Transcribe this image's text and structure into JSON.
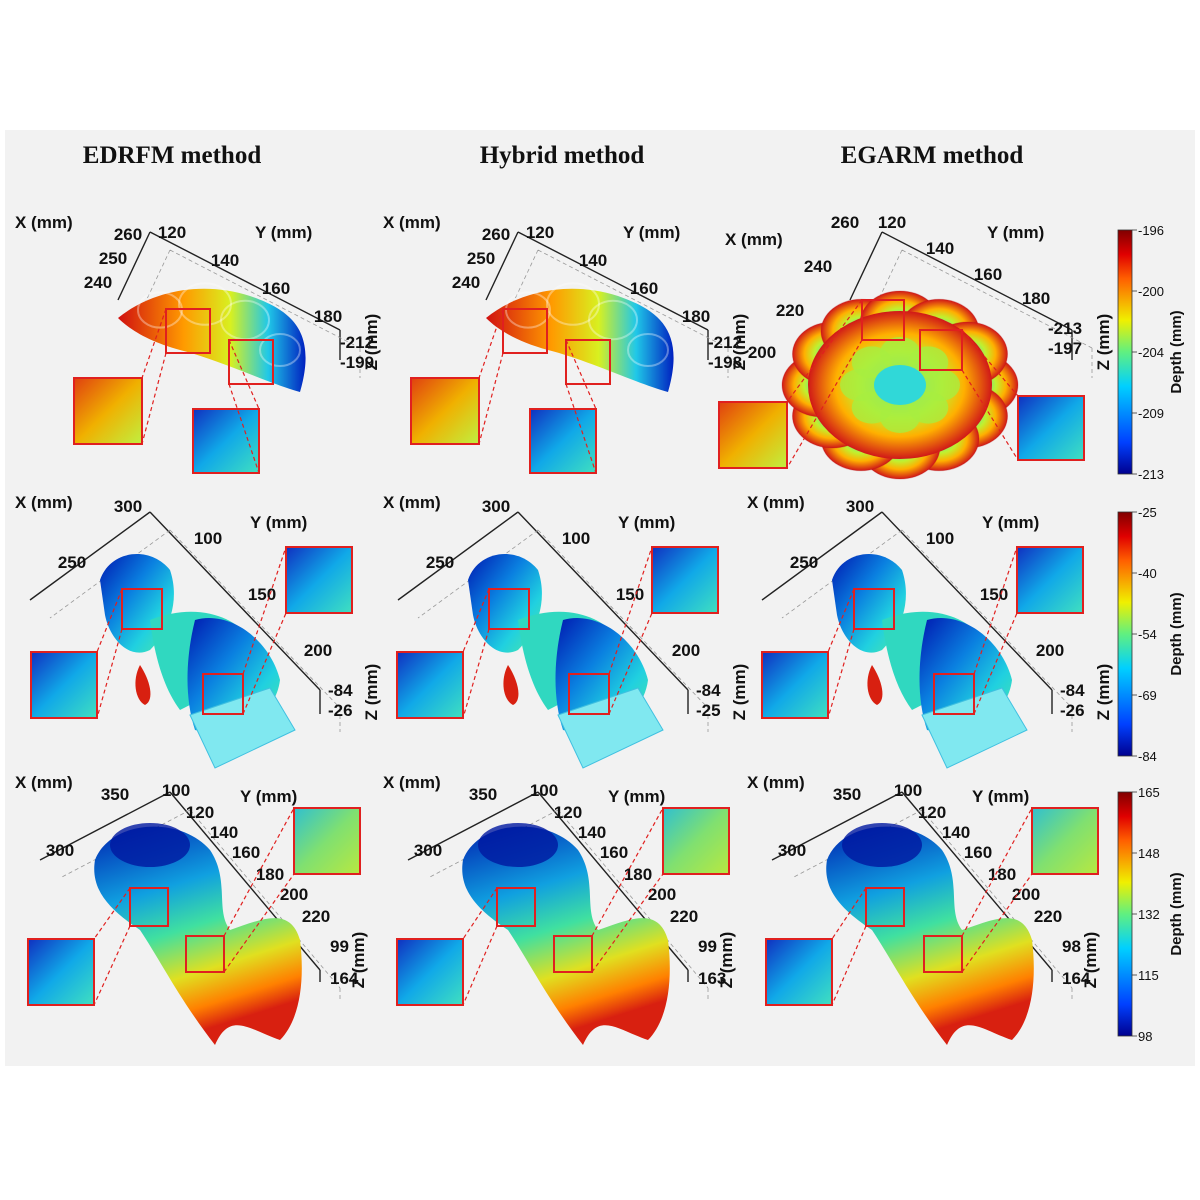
{
  "column_titles": [
    "EDRFM method",
    "Hybrid method",
    "EGARM method"
  ],
  "colors": {
    "background": "#f2f2f2",
    "zoom_box": "#e0201f",
    "colormap": [
      "#00008f",
      "#0050ff",
      "#00c8ff",
      "#30e0b0",
      "#d0f020",
      "#ffe000",
      "#ff8000",
      "#e01010",
      "#800000"
    ]
  },
  "axes_text": {
    "x_label": "X (mm)",
    "y_label": "Y (mm)",
    "z_label": "Z (mm)"
  },
  "rows": [
    {
      "colorbar": {
        "label": "Depth (mm)",
        "ticks": [
          "-196",
          "-200",
          "-204",
          "-209",
          "-213"
        ]
      },
      "panels": [
        {
          "x_ticks": [
            "260",
            "250",
            "240"
          ],
          "y_ticks": [
            "120",
            "140",
            "160",
            "180"
          ],
          "z_ticks": [
            "-212",
            "-199"
          ]
        },
        {
          "x_ticks": [
            "260",
            "250",
            "240"
          ],
          "y_ticks": [
            "120",
            "140",
            "160",
            "180"
          ],
          "z_ticks": [
            "-212",
            "-198"
          ]
        },
        {
          "x_ticks": [
            "260",
            "240",
            "220",
            "200"
          ],
          "y_ticks": [
            "120",
            "140",
            "160",
            "180"
          ],
          "z_ticks": [
            "-213",
            "-197"
          ]
        }
      ]
    },
    {
      "colorbar": {
        "label": "Depth (mm)",
        "ticks": [
          "-25",
          "-40",
          "-54",
          "-69",
          "-84"
        ]
      },
      "panels": [
        {
          "x_ticks": [
            "300",
            "250"
          ],
          "y_ticks": [
            "100",
            "150",
            "200"
          ],
          "z_ticks": [
            "-84",
            "-26"
          ]
        },
        {
          "x_ticks": [
            "300",
            "250"
          ],
          "y_ticks": [
            "100",
            "150",
            "200"
          ],
          "z_ticks": [
            "-84",
            "-25"
          ]
        },
        {
          "x_ticks": [
            "300",
            "250"
          ],
          "y_ticks": [
            "100",
            "150",
            "200"
          ],
          "z_ticks": [
            "-84",
            "-26"
          ]
        }
      ]
    },
    {
      "colorbar": {
        "label": "Depth (mm)",
        "ticks": [
          "165",
          "148",
          "132",
          "115",
          "98"
        ]
      },
      "panels": [
        {
          "x_ticks": [
            "350",
            "300"
          ],
          "y_ticks": [
            "100",
            "120",
            "140",
            "160",
            "180",
            "200",
            "220"
          ],
          "z_ticks": [
            "99",
            "164"
          ]
        },
        {
          "x_ticks": [
            "350",
            "300"
          ],
          "y_ticks": [
            "100",
            "120",
            "140",
            "160",
            "180",
            "200",
            "220"
          ],
          "z_ticks": [
            "99",
            "163"
          ]
        },
        {
          "x_ticks": [
            "350",
            "300"
          ],
          "y_ticks": [
            "100",
            "120",
            "140",
            "160",
            "180",
            "200",
            "220"
          ],
          "z_ticks": [
            "98",
            "164"
          ]
        }
      ]
    }
  ]
}
